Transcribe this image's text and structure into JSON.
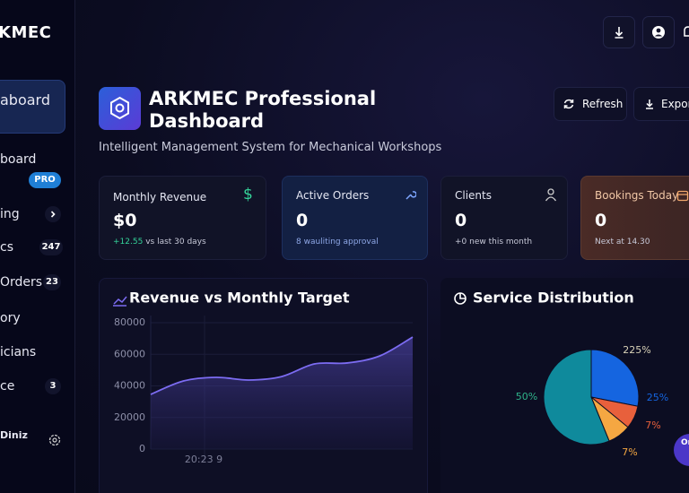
{
  "sidebar": {
    "brand": "KMEC",
    "items": [
      {
        "label": "aboard"
      },
      {
        "label": "board",
        "badge": "PRO"
      },
      {
        "label": "ing"
      },
      {
        "label": "cs",
        "badge": "247"
      },
      {
        "label": "Orders",
        "badge": "23"
      },
      {
        "label": "ory"
      },
      {
        "label": "icians"
      },
      {
        "label": "ce",
        "badge": "3"
      }
    ],
    "user": "Diniz"
  },
  "header": {
    "title": "ARKMEC Professional Dashboard",
    "subtitle": "Intelligent Management System for Mechanical Workshops",
    "buttons": [
      "Refresh",
      "Export"
    ]
  },
  "stats": [
    {
      "label": "Monthly Revenue",
      "value": "$0",
      "change": "+12.55",
      "note": "vs last 30 days"
    },
    {
      "label": "Active Orders",
      "value": "0",
      "note": "8 wauliting approval"
    },
    {
      "label": "Clients",
      "value": "0",
      "note": "+0 new this month"
    },
    {
      "label": "Bookings Today",
      "value": "0",
      "note": "Next at 14.30"
    }
  ],
  "fab": "Or",
  "chart_data": [
    {
      "type": "line",
      "title": "Revenue vs Monthly Target",
      "x_label": "20:23 9",
      "categories": [
        null,
        null,
        null,
        null,
        null,
        null,
        null,
        null,
        null
      ],
      "series": [
        {
          "color": "#7c6cf2",
          "values": [
            34600,
            43100,
            45400,
            43700,
            45900,
            53900,
            54500,
            59000,
            70900
          ]
        }
      ],
      "ylim": [
        0,
        80000
      ],
      "yticks": [
        0,
        20000,
        40000,
        60000,
        80000
      ],
      "grid": true
    },
    {
      "type": "pie",
      "title": "Service Distribution",
      "values": [
        25,
        7,
        7,
        50
      ],
      "value_labels": [
        "25%",
        "7%",
        "7%",
        "50%"
      ],
      "colors": [
        "#1565e0",
        "#e8603c",
        "#f5a742",
        "#0f8a9c"
      ],
      "annotation": "225%"
    }
  ]
}
